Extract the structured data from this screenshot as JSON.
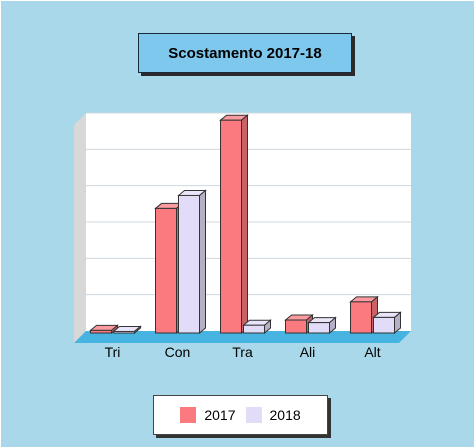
{
  "chart_data": {
    "type": "bar",
    "title": "Scostamento 2017-18",
    "categories": [
      "Tri",
      "Con",
      "Tra",
      "Ali",
      "Alt"
    ],
    "series": [
      {
        "name": "2017",
        "color": "#fa7a80",
        "values": [
          0.5,
          24,
          41,
          2.5,
          6
        ]
      },
      {
        "name": "2018",
        "color": "#e3dcf8",
        "values": [
          0.3,
          26.5,
          1.5,
          2,
          3
        ]
      }
    ],
    "ylim": [
      0,
      42
    ],
    "grid": true,
    "legend_position": "bottom"
  }
}
